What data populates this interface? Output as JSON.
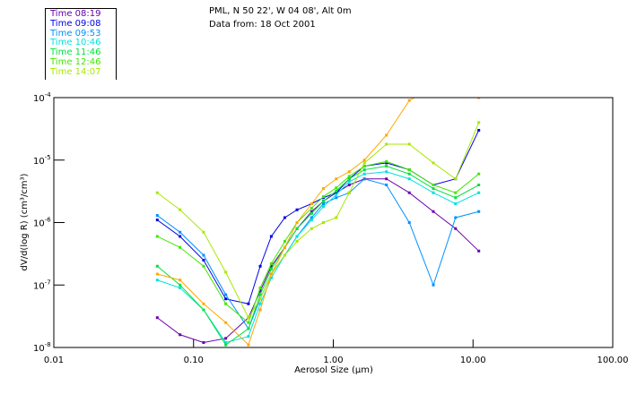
{
  "chart_data": {
    "type": "line",
    "title": "PML, N 50 22', W 04 08', Alt 0m",
    "subtitle": "Data from: 18 Oct 2001",
    "xlabel": "Aerosol Size (µm)",
    "ylabel": "dV/d(log R) (cm³/cm³)",
    "xscale": "log",
    "yscale": "log",
    "xlim": [
      0.01,
      100
    ],
    "ylim": [
      1e-08,
      0.0001
    ],
    "xticks": [
      {
        "v": 0.01,
        "label": "0.01"
      },
      {
        "v": 0.1,
        "label": "0.10"
      },
      {
        "v": 1,
        "label": "1.00"
      },
      {
        "v": 10,
        "label": "10.00"
      },
      {
        "v": 100,
        "label": "100.00"
      }
    ],
    "yticks": [
      {
        "v": 0.0001,
        "exp": "-4"
      },
      {
        "v": 1e-05,
        "exp": "-5"
      },
      {
        "v": 1e-06,
        "exp": "-6"
      },
      {
        "v": 1e-07,
        "exp": "-7"
      },
      {
        "v": 1e-08,
        "exp": "-8"
      }
    ],
    "legend_position": "top-left",
    "x": [
      0.055,
      0.08,
      0.118,
      0.17,
      0.247,
      0.3,
      0.36,
      0.45,
      0.55,
      0.7,
      0.85,
      1.05,
      1.3,
      1.67,
      2.4,
      3.5,
      5.2,
      7.5,
      11
    ],
    "series": [
      {
        "name": "Time 08:19",
        "color": "#6a00b0",
        "values": [
          3e-08,
          1.6e-08,
          1.2e-08,
          1.4e-08,
          3e-08,
          8e-08,
          2e-07,
          4e-07,
          8e-07,
          1.5e-06,
          2.2e-06,
          3e-06,
          4e-06,
          5e-06,
          5e-06,
          3e-06,
          1.5e-06,
          8e-07,
          3.5e-07
        ]
      },
      {
        "name": "Time 09:08",
        "color": "#0000e8",
        "values": [
          1.1e-06,
          6e-07,
          2.5e-07,
          6e-08,
          5e-08,
          2e-07,
          6e-07,
          1.2e-06,
          1.6e-06,
          2e-06,
          2.5e-06,
          3e-06,
          5e-06,
          8e-06,
          9e-06,
          7e-06,
          4e-06,
          5e-06,
          3e-05
        ]
      },
      {
        "name": "Time 09:53",
        "color": "#0090ff",
        "values": [
          1.3e-06,
          7e-07,
          3e-07,
          7e-08,
          2e-08,
          6e-08,
          1.5e-07,
          3e-07,
          6e-07,
          1.2e-06,
          2e-06,
          2.5e-06,
          3e-06,
          5e-06,
          4e-06,
          1e-06,
          1e-07,
          1.2e-06,
          1.5e-06
        ]
      },
      {
        "name": "Time 10:46",
        "color": "#00e0e0",
        "values": [
          1.2e-07,
          9e-08,
          4e-08,
          1.2e-08,
          1.5e-08,
          5e-08,
          1.3e-07,
          3e-07,
          6e-07,
          1.1e-06,
          1.8e-06,
          2.8e-06,
          4.5e-06,
          6e-06,
          6.5e-06,
          5e-06,
          3e-06,
          2e-06,
          3e-06
        ]
      },
      {
        "name": "Time 11:46",
        "color": "#00e040",
        "values": [
          2e-07,
          1e-07,
          4e-08,
          1.1e-08,
          2e-08,
          7e-08,
          1.8e-07,
          4e-07,
          8e-07,
          1.4e-06,
          2.2e-06,
          3.2e-06,
          5e-06,
          7e-06,
          8e-06,
          6e-06,
          3.5e-06,
          2.5e-06,
          4e-06
        ]
      },
      {
        "name": "Time 12:46",
        "color": "#40e800",
        "values": [
          6e-07,
          4e-07,
          2e-07,
          5e-08,
          2.5e-08,
          9e-08,
          2.2e-07,
          5e-07,
          1e-06,
          1.7e-06,
          2.6e-06,
          3.6e-06,
          5.5e-06,
          8e-06,
          9.5e-06,
          7e-06,
          4e-06,
          3e-06,
          6e-06
        ]
      },
      {
        "name": "Time 14:07",
        "color": "#a8e800",
        "values": [
          3e-06,
          1.6e-06,
          7e-07,
          1.6e-07,
          3e-08,
          6e-08,
          1.5e-07,
          3e-07,
          5e-07,
          8e-07,
          1e-06,
          1.2e-06,
          3e-06,
          9e-06,
          1.8e-05,
          1.8e-05,
          9e-06,
          5e-06,
          4e-05
        ]
      },
      {
        "color": "#ffa800",
        "values": [
          1.5e-07,
          1.2e-07,
          5e-08,
          2.5e-08,
          1.1e-08,
          4e-08,
          1.5e-07,
          4e-07,
          1e-06,
          2e-06,
          3.5e-06,
          5e-06,
          6.5e-06,
          1e-05,
          2.5e-05,
          9e-05,
          0.00015,
          0.00015,
          0.0001
        ]
      }
    ]
  }
}
